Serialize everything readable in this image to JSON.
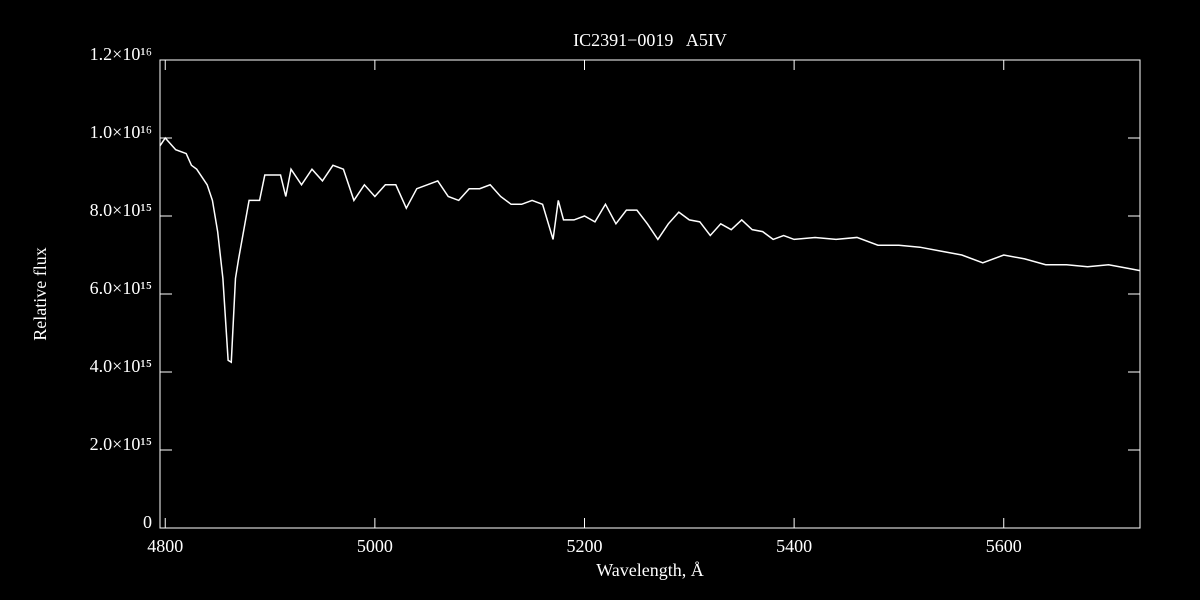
{
  "chart_data": {
    "type": "line",
    "title": "IC2391−0019   A5IV",
    "x_label": "Wavelength, Å",
    "y_label": "Relative flux",
    "xlim": [
      4795,
      5730
    ],
    "ylim": [
      0,
      1.2e+16
    ],
    "xticks": [
      4800,
      5000,
      5200,
      5400,
      5600
    ],
    "yticks": [
      0,
      {
        "value": 2000000000000000.0,
        "label": "2.0×10¹⁵"
      },
      {
        "value": 4000000000000000.0,
        "label": "4.0×10¹⁵"
      },
      {
        "value": 6000000000000000.0,
        "label": "6.0×10¹⁵"
      },
      {
        "value": 8000000000000000.0,
        "label": "8.0×10¹⁵"
      },
      {
        "value": 1e+16,
        "label": "1.0×10¹⁶"
      },
      {
        "value": 1.2e+16,
        "label": "1.2×10¹⁶"
      }
    ],
    "color": "#ffffff",
    "x": [
      4795,
      4800,
      4810,
      4820,
      4825,
      4830,
      4840,
      4845,
      4850,
      4855,
      4860,
      4863,
      4867,
      4870,
      4880,
      4890,
      4895,
      4900,
      4910,
      4915,
      4920,
      4930,
      4940,
      4950,
      4960,
      4970,
      4980,
      4990,
      5000,
      5010,
      5020,
      5030,
      5040,
      5050,
      5060,
      5070,
      5080,
      5090,
      5100,
      5110,
      5120,
      5130,
      5140,
      5150,
      5160,
      5170,
      5175,
      5180,
      5190,
      5200,
      5210,
      5220,
      5230,
      5240,
      5250,
      5260,
      5270,
      5280,
      5290,
      5300,
      5310,
      5320,
      5330,
      5340,
      5350,
      5360,
      5370,
      5380,
      5390,
      5400,
      5420,
      5440,
      5460,
      5480,
      5500,
      5520,
      5540,
      5560,
      5580,
      5600,
      5620,
      5640,
      5660,
      5680,
      5700,
      5720,
      5730
    ],
    "values": [
      9800000000000000.0,
      1e+16,
      9700000000000000.0,
      9600000000000000.0,
      9300000000000000.0,
      9200000000000000.0,
      8800000000000000.0,
      8400000000000000.0,
      7600000000000000.0,
      6400000000000000.0,
      4300000000000000.0,
      4250000000000000.0,
      6400000000000000.0,
      6900000000000000.0,
      8400000000000000.0,
      8400000000000000.0,
      9050000000000000.0,
      9050000000000000.0,
      9050000000000000.0,
      8500000000000000.0,
      9200000000000000.0,
      8800000000000000.0,
      9200000000000000.0,
      8900000000000000.0,
      9300000000000000.0,
      9200000000000000.0,
      8400000000000000.0,
      8800000000000000.0,
      8500000000000000.0,
      8800000000000000.0,
      8800000000000000.0,
      8200000000000000.0,
      8700000000000000.0,
      8800000000000000.0,
      8900000000000000.0,
      8500000000000000.0,
      8400000000000000.0,
      8700000000000000.0,
      8700000000000000.0,
      8800000000000000.0,
      8500000000000000.0,
      8300000000000000.0,
      8300000000000000.0,
      8400000000000000.0,
      8300000000000000.0,
      7400000000000000.0,
      8400000000000000.0,
      7900000000000000.0,
      7900000000000000.0,
      8000000000000000.0,
      7850000000000000.0,
      8300000000000000.0,
      7800000000000000.0,
      8150000000000000.0,
      8150000000000000.0,
      7800000000000000.0,
      7400000000000000.0,
      7800000000000000.0,
      8100000000000000.0,
      7900000000000000.0,
      7850000000000000.0,
      7500000000000000.0,
      7800000000000000.0,
      7650000000000000.0,
      7900000000000000.0,
      7650000000000000.0,
      7600000000000000.0,
      7400000000000000.0,
      7500000000000000.0,
      7400000000000000.0,
      7450000000000000.0,
      7400000000000000.0,
      7450000000000000.0,
      7250000000000000.0,
      7250000000000000.0,
      7200000000000000.0,
      7100000000000000.0,
      7000000000000000.0,
      6800000000000000.0,
      7000000000000000.0,
      6900000000000000.0,
      6750000000000000.0,
      6750000000000000.0,
      6700000000000000.0,
      6750000000000000.0,
      6650000000000000.0,
      6600000000000000.0
    ]
  }
}
